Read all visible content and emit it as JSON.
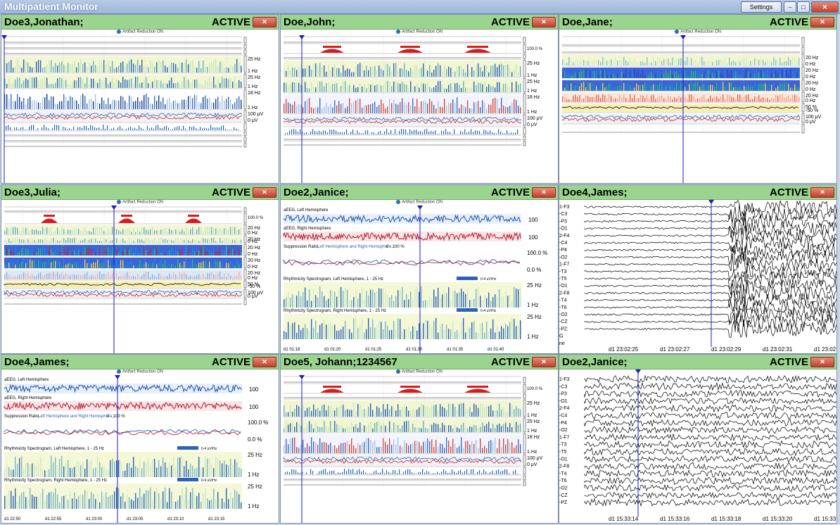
{
  "app": {
    "title": "Multipatient Monitor",
    "settings_label": "Settings",
    "minimize": "–",
    "restore": "□",
    "close": "✕"
  },
  "panel_common": {
    "status": "ACTIVE",
    "close": "✕",
    "artifact_reduction": "Artifact Reduction ON"
  },
  "panels": [
    {
      "name": "Doe3,Jonathan;",
      "kind": "trend",
      "variant": "A"
    },
    {
      "name": "Doe,John;",
      "kind": "trend",
      "variant": "B"
    },
    {
      "name": "Doe,Jane;",
      "kind": "trend",
      "variant": "C"
    },
    {
      "name": "Doe3,Julia;",
      "kind": "trend",
      "variant": "D"
    },
    {
      "name": "Doe2,Janice;",
      "kind": "summary",
      "times": [
        "d1 01:18",
        "d1 01:20",
        "d1 01:25",
        "d1 01:30",
        "d1 01:35",
        "d1 01:40"
      ]
    },
    {
      "name": "Doe4,James;",
      "kind": "eeg",
      "times": [
        "d1 23:02:25",
        "d1 23:02:27",
        "d1 23:02:29",
        "d1 23:02:31",
        "d1 23:02"
      ]
    },
    {
      "name": "Doe4,James;",
      "kind": "summary",
      "times": [
        "d1 22:50",
        "d1 22:55",
        "d1 23:00",
        "d1 23:05",
        "d1 23:10",
        "d1 23:15"
      ]
    },
    {
      "name": "Doe5, Johann;1234567",
      "kind": "trend",
      "variant": "B"
    },
    {
      "name": "Doe2,Janice;",
      "kind": "eeg",
      "times": [
        "d1 15:33:14",
        "d1 15:33:16",
        "d1 15:33:18",
        "d1 15:33:20",
        "d1 15:33:22"
      ]
    }
  ],
  "eeg_channels_a": [
    "1-F3",
    "-C3",
    "-P3",
    "-O1",
    "2-F4",
    "-C4",
    "-P4",
    "-O2",
    "1-F7",
    "-T3",
    "-T5",
    "-O1",
    "2-F8",
    "-T4",
    "-T6",
    "-O2",
    "-CZ",
    "-PZ",
    "G",
    "ne"
  ],
  "eeg_channels_b": [
    "1-F3",
    "-C3",
    "-P3",
    "-O1",
    "2-F4",
    "-C4",
    "-P4",
    "-O2",
    "1-F7",
    "-T3",
    "-T5",
    "-O1",
    "2-F8",
    "-T4",
    "-T6",
    "-O2",
    "-CZ",
    "-PZ"
  ],
  "summary_labels": {
    "aeeg_left": "aEEG, Left Hemisphere",
    "aeeg_right": "aEEG, Right Hemisphere",
    "aeeg_scale_top": "100",
    "aeeg_scale_unit": "μV",
    "suppression_prefix": "Suppression Ratio,",
    "suppression_series": "Left Hemisphere and Right Hemisphere,",
    "suppression_range": "0 - 100 %",
    "pct_high": "100.0 %",
    "pct_low": "0.0 %",
    "spec_left": "Rhythmicity Spectrogram, Left Hemisphere, 1 - 25 Hz",
    "spec_right": "Rhythmicity Spectrogram, Right Hemisphere, 1 - 25 Hz",
    "spec_legend": "0-4 uV/Hz",
    "hz_high": "25 Hz",
    "hz_low": "1 Hz"
  },
  "trend_scales": {
    "hz_high": "25 Hz",
    "hz_low": "1 Hz",
    "hz_18": "18 Hz",
    "hz_20": "20 Hz",
    "hz_0": "0 Hz",
    "uv": "100 μV",
    "uv0": "0 μV",
    "pct50": "50 %",
    "pct_neg50": "-50 %",
    "pct100": "100.0 %",
    "pct0": "0.0 %"
  },
  "colors": {
    "header": "#9bd48f",
    "close": "#c2402c",
    "cursor": "#1a1acc",
    "left": "#2a62b8",
    "right": "#c0283a"
  }
}
